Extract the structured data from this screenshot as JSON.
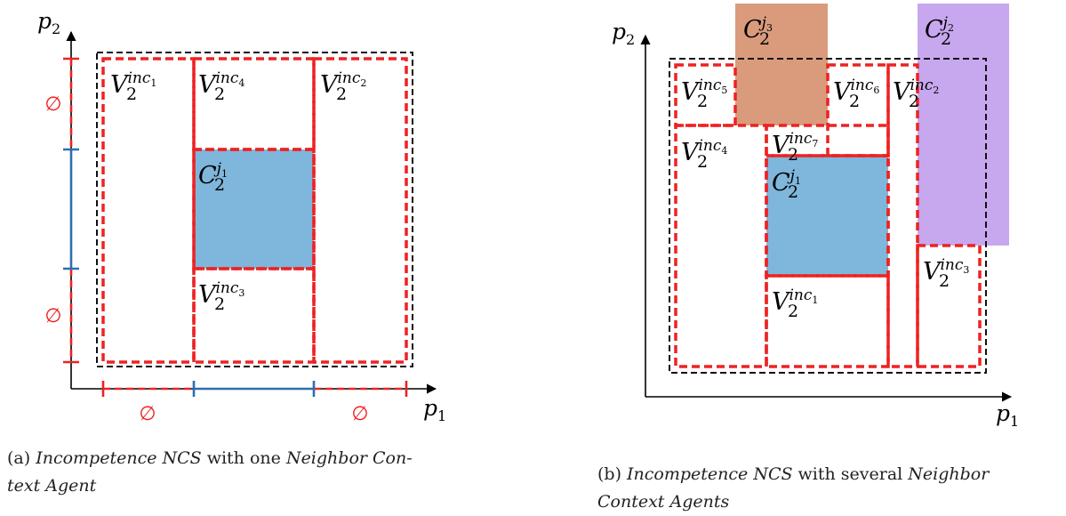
{
  "panel_a": {
    "axis_x": "p",
    "axis_x_sub": "1",
    "axis_y": "p",
    "axis_y_sub": "2",
    "empty_symbol": "∅",
    "regions": [
      {
        "letter": "V",
        "sub": "2",
        "sup": "inc",
        "sup_sub": "1"
      },
      {
        "letter": "V",
        "sub": "2",
        "sup": "inc",
        "sup_sub": "4"
      },
      {
        "letter": "V",
        "sub": "2",
        "sup": "inc",
        "sup_sub": "2"
      },
      {
        "letter": "C",
        "sub": "2",
        "sup": "j",
        "sup_sub": "1"
      },
      {
        "letter": "V",
        "sub": "2",
        "sup": "inc",
        "sup_sub": "3"
      }
    ],
    "caption": {
      "prefix": "(a) ",
      "term1": "Incompetence NCS",
      "middle": " with one ",
      "term2": "Neighbor Con-",
      "line2": "text Agent"
    }
  },
  "panel_b": {
    "axis_x": "p",
    "axis_x_sub": "1",
    "axis_y": "p",
    "axis_y_sub": "2",
    "regions": [
      {
        "letter": "C",
        "sub": "2",
        "sup": "j",
        "sup_sub": "3"
      },
      {
        "letter": "C",
        "sub": "2",
        "sup": "j",
        "sup_sub": "2"
      },
      {
        "letter": "V",
        "sub": "2",
        "sup": "inc",
        "sup_sub": "5"
      },
      {
        "letter": "V",
        "sub": "2",
        "sup": "inc",
        "sup_sub": "6"
      },
      {
        "letter": "V",
        "sub": "2",
        "sup": "inc",
        "sup_sub": "2"
      },
      {
        "letter": "V",
        "sub": "2",
        "sup": "inc",
        "sup_sub": "4"
      },
      {
        "letter": "V",
        "sub": "2",
        "sup": "inc",
        "sup_sub": "7"
      },
      {
        "letter": "C",
        "sub": "2",
        "sup": "j",
        "sup_sub": "1"
      },
      {
        "letter": "V",
        "sub": "2",
        "sup": "inc",
        "sup_sub": "3"
      },
      {
        "letter": "V",
        "sub": "2",
        "sup": "inc",
        "sup_sub": "1"
      }
    ],
    "caption": {
      "prefix": "(b) ",
      "term1": "Incompetence NCS",
      "middle": " with several ",
      "term2": "Neighbor",
      "line2": "Context Agents"
    }
  },
  "colors": {
    "context_blue": "#7fb6db",
    "context_orange": "#d99b7c",
    "context_purple": "#c7a7ee",
    "incompetence_red": "#ee2222",
    "bounds_black": "#111111",
    "axis_blue": "#2d6fb0"
  }
}
